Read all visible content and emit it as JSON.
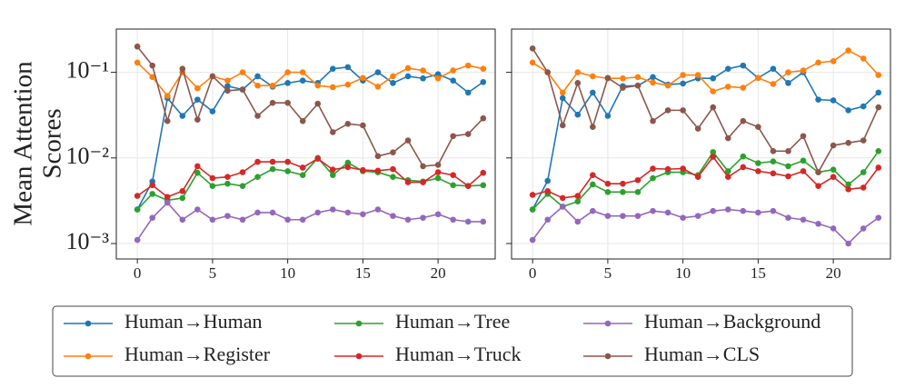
{
  "chart_data": [
    {
      "type": "line",
      "ylabel": [
        "Mean Attention",
        "Scores"
      ],
      "log_y": true,
      "grid": true,
      "show_ytick_labels": true,
      "x": [
        0,
        1,
        2,
        3,
        4,
        5,
        6,
        7,
        8,
        9,
        10,
        11,
        12,
        13,
        14,
        15,
        16,
        17,
        18,
        19,
        20,
        21,
        22,
        23
      ],
      "xlim": [
        -1.4,
        23.8
      ],
      "xticks": [
        0,
        5,
        10,
        15,
        20
      ],
      "ylim": [
        0.00066,
        0.32
      ],
      "yticks": [
        {
          "value": 0.001,
          "label": "10⁻³"
        },
        {
          "value": 0.01,
          "label": "10⁻²"
        },
        {
          "value": 0.1,
          "label": "10⁻¹"
        }
      ],
      "legend": "bottom",
      "series": [
        {
          "name": "Human→Human",
          "color": "#1f77b4",
          "values": [
            0.0025,
            0.0053,
            0.05,
            0.031,
            0.048,
            0.035,
            0.069,
            0.063,
            0.09,
            0.068,
            0.075,
            0.08,
            0.075,
            0.11,
            0.115,
            0.08,
            0.1,
            0.075,
            0.09,
            0.085,
            0.095,
            0.08,
            0.058,
            0.077
          ]
        },
        {
          "name": "Human→Register",
          "color": "#ff7f0e",
          "values": [
            0.13,
            0.088,
            0.053,
            0.1,
            0.065,
            0.09,
            0.08,
            0.1,
            0.07,
            0.07,
            0.1,
            0.1,
            0.07,
            0.067,
            0.072,
            0.086,
            0.068,
            0.09,
            0.112,
            0.105,
            0.085,
            0.105,
            0.12,
            0.11
          ]
        },
        {
          "name": "Human→Tree",
          "color": "#2ca02c",
          "values": [
            0.0025,
            0.0038,
            0.0032,
            0.0034,
            0.0067,
            0.0047,
            0.005,
            0.0047,
            0.006,
            0.0074,
            0.007,
            0.0063,
            0.01,
            0.0063,
            0.0088,
            0.007,
            0.0068,
            0.006,
            0.0055,
            0.0053,
            0.0058,
            0.0048,
            0.0047,
            0.0048
          ]
        },
        {
          "name": "Human→Truck",
          "color": "#d62728",
          "values": [
            0.0036,
            0.0048,
            0.0035,
            0.0041,
            0.008,
            0.0058,
            0.006,
            0.0068,
            0.009,
            0.009,
            0.009,
            0.0077,
            0.0098,
            0.0073,
            0.0078,
            0.0072,
            0.0071,
            0.0074,
            0.0052,
            0.0052,
            0.0068,
            0.0063,
            0.0047,
            0.0067
          ]
        },
        {
          "name": "Human→Background",
          "color": "#9467bd",
          "values": [
            0.0011,
            0.002,
            0.003,
            0.0019,
            0.0025,
            0.0019,
            0.0021,
            0.0019,
            0.0023,
            0.0023,
            0.0019,
            0.0019,
            0.0023,
            0.0025,
            0.0023,
            0.0022,
            0.0025,
            0.0021,
            0.0019,
            0.002,
            0.0022,
            0.0019,
            0.0018,
            0.0018
          ]
        },
        {
          "name": "Human→CLS",
          "color": "#8c564b",
          "values": [
            0.2,
            0.12,
            0.027,
            0.11,
            0.028,
            0.09,
            0.061,
            0.063,
            0.031,
            0.044,
            0.044,
            0.027,
            0.043,
            0.02,
            0.025,
            0.024,
            0.0105,
            0.0116,
            0.016,
            0.008,
            0.0083,
            0.018,
            0.019,
            0.029
          ]
        }
      ]
    },
    {
      "type": "line",
      "log_y": true,
      "grid": true,
      "show_ytick_labels": false,
      "x": [
        0,
        1,
        2,
        3,
        4,
        5,
        6,
        7,
        8,
        9,
        10,
        11,
        12,
        13,
        14,
        15,
        16,
        17,
        18,
        19,
        20,
        21,
        22,
        23
      ],
      "xlim": [
        -1.4,
        23.8
      ],
      "xticks": [
        0,
        5,
        10,
        15,
        20
      ],
      "ylim": [
        0.00066,
        0.32
      ],
      "yticks": [
        0.001,
        0.01,
        0.1
      ],
      "series": [
        {
          "name": "Human→Human",
          "color": "#1f77b4",
          "values": [
            0.0025,
            0.0054,
            0.05,
            0.032,
            0.058,
            0.031,
            0.069,
            0.07,
            0.088,
            0.072,
            0.074,
            0.085,
            0.085,
            0.11,
            0.12,
            0.086,
            0.11,
            0.075,
            0.1,
            0.048,
            0.047,
            0.036,
            0.04,
            0.058
          ]
        },
        {
          "name": "Human→Register",
          "color": "#ff7f0e",
          "values": [
            0.13,
            0.1,
            0.058,
            0.1,
            0.09,
            0.085,
            0.085,
            0.088,
            0.076,
            0.07,
            0.093,
            0.093,
            0.06,
            0.068,
            0.066,
            0.086,
            0.073,
            0.1,
            0.105,
            0.13,
            0.135,
            0.18,
            0.145,
            0.093
          ]
        },
        {
          "name": "Human→Tree",
          "color": "#2ca02c",
          "values": [
            0.0025,
            0.0038,
            0.0027,
            0.0031,
            0.0049,
            0.004,
            0.004,
            0.004,
            0.0058,
            0.0068,
            0.0068,
            0.0063,
            0.0117,
            0.007,
            0.0104,
            0.0087,
            0.0091,
            0.008,
            0.0093,
            0.0068,
            0.0073,
            0.0049,
            0.0068,
            0.012
          ]
        },
        {
          "name": "Human→Truck",
          "color": "#d62728",
          "values": [
            0.0037,
            0.0041,
            0.0034,
            0.0036,
            0.0063,
            0.005,
            0.005,
            0.0055,
            0.0075,
            0.0074,
            0.0075,
            0.006,
            0.0103,
            0.006,
            0.0078,
            0.007,
            0.0066,
            0.0061,
            0.007,
            0.0047,
            0.006,
            0.0043,
            0.0045,
            0.0077
          ]
        },
        {
          "name": "Human→Background",
          "color": "#9467bd",
          "values": [
            0.0011,
            0.0019,
            0.0027,
            0.0018,
            0.0024,
            0.0021,
            0.0021,
            0.0021,
            0.0024,
            0.0023,
            0.002,
            0.0021,
            0.0024,
            0.0025,
            0.0024,
            0.0023,
            0.0024,
            0.002,
            0.0019,
            0.0017,
            0.0015,
            0.001,
            0.0015,
            0.002
          ]
        },
        {
          "name": "Human→CLS",
          "color": "#8c564b",
          "values": [
            0.19,
            0.1,
            0.024,
            0.075,
            0.023,
            0.086,
            0.066,
            0.07,
            0.027,
            0.036,
            0.036,
            0.022,
            0.039,
            0.017,
            0.027,
            0.023,
            0.012,
            0.012,
            0.018,
            0.0068,
            0.014,
            0.015,
            0.016,
            0.039
          ]
        }
      ]
    }
  ]
}
